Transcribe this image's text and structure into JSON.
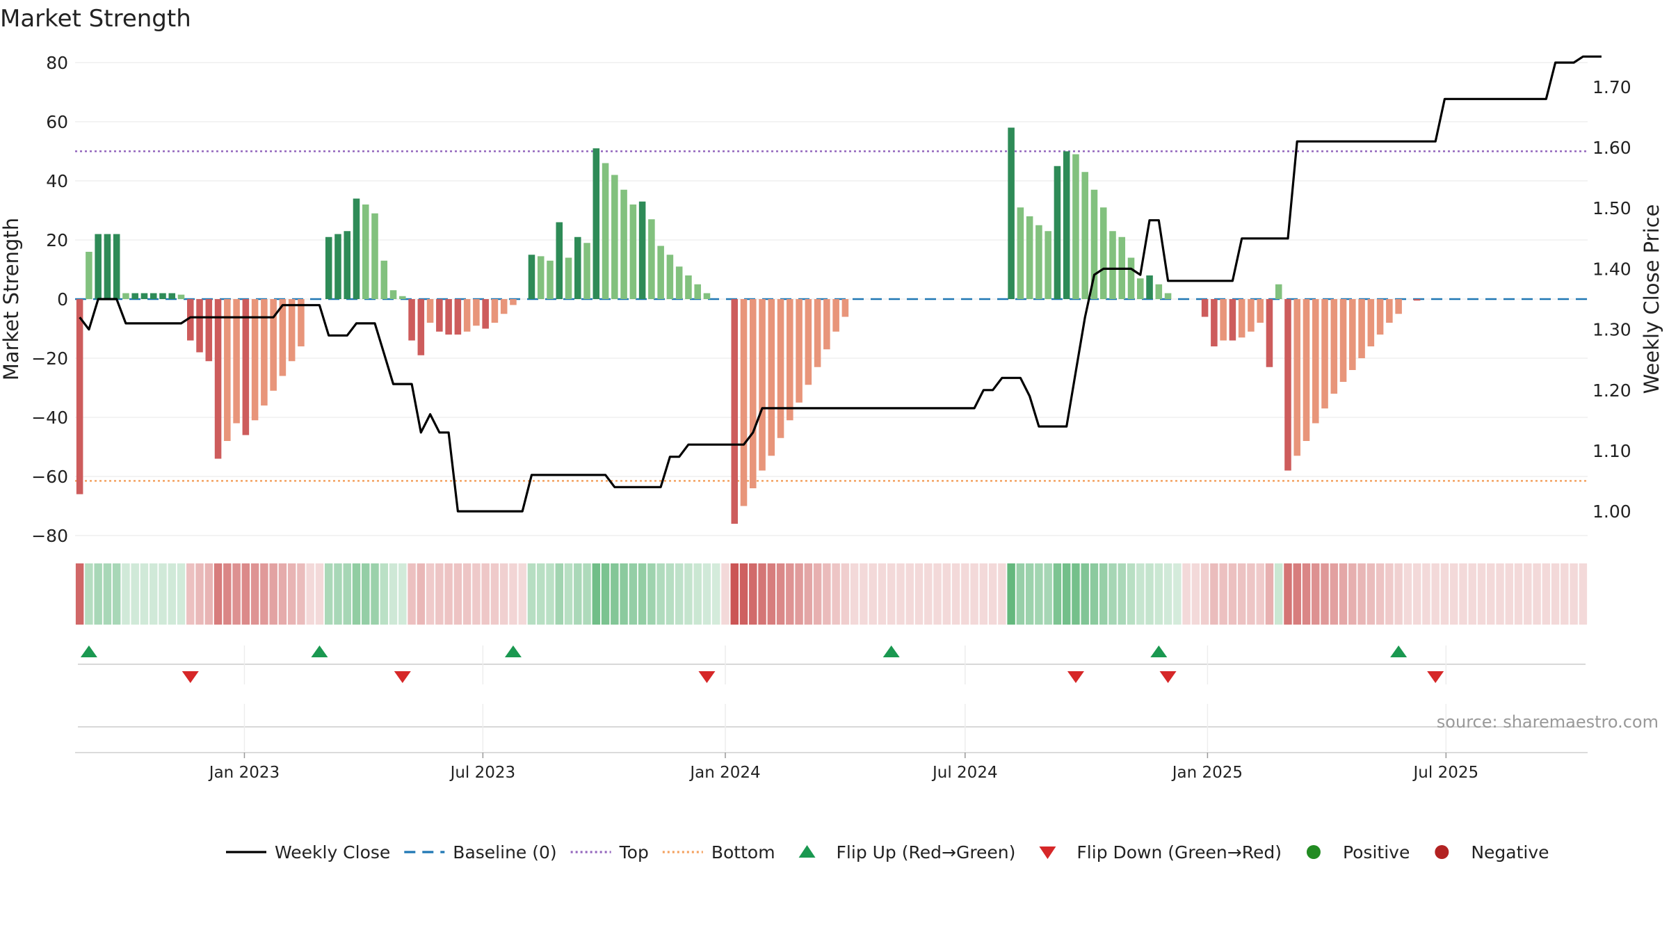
{
  "chart_data": {
    "type": "bar",
    "title": "Market Strength",
    "source": "source: sharemaestro.com",
    "left_axis": {
      "label": "Market Strength",
      "range": [
        -80,
        80
      ],
      "ticks": [
        80,
        60,
        40,
        20,
        0,
        -20,
        -40,
        -60,
        -80
      ],
      "tick_labels": [
        "80",
        "60",
        "40",
        "20",
        "0",
        "−20",
        "−40",
        "−60",
        "−80"
      ]
    },
    "right_axis": {
      "label": "Weekly Close Price",
      "range": [
        0.96,
        1.74
      ],
      "ticks": [
        1.0,
        1.1,
        1.2,
        1.3,
        1.4,
        1.5,
        1.6,
        1.7
      ],
      "tick_labels": [
        "1.00",
        "1.10",
        "1.20",
        "1.30",
        "1.40",
        "1.50",
        "1.60",
        "1.70"
      ]
    },
    "x_axis": {
      "start": "2022-08-29",
      "weeks": 158,
      "tick_labels": [
        "Jan 2023",
        "Jul 2023",
        "Jan 2024",
        "Jul 2024",
        "Jan 2025",
        "Jul 2025"
      ],
      "tick_dates": [
        "2023-01-01",
        "2023-07-01",
        "2024-01-01",
        "2024-07-01",
        "2025-01-01",
        "2025-07-01"
      ]
    },
    "reference_lines": {
      "baseline": 0,
      "top": 50,
      "bottom": -61.5
    },
    "strength": [
      -66,
      16,
      22,
      22,
      22,
      2,
      2,
      2,
      2,
      2,
      2,
      1.5,
      -14,
      -18,
      -21,
      -54,
      -48,
      -42,
      -46,
      -41,
      -36,
      -31,
      -26,
      -21,
      -16,
      0,
      0,
      21,
      22,
      23,
      34,
      32,
      29,
      13,
      3,
      1,
      -14,
      -19,
      -8,
      -11,
      -12,
      -12,
      -11,
      -9,
      -10,
      -8,
      -5,
      -2,
      0,
      15,
      14.5,
      13,
      26,
      14,
      21,
      19,
      51,
      46,
      42,
      37,
      32,
      33,
      27,
      18,
      15,
      11,
      8,
      5,
      2,
      0,
      0,
      -76,
      -70,
      -64,
      -58,
      -53,
      -47,
      -41,
      -35,
      -29,
      -23,
      -17,
      -11,
      -6,
      0,
      0,
      0,
      0,
      0,
      0,
      0,
      0,
      0,
      0,
      0,
      0,
      0,
      0,
      0,
      0,
      0,
      58,
      31,
      28,
      25,
      23,
      45,
      50,
      49,
      43,
      37,
      31,
      23,
      21,
      14,
      7,
      8,
      5,
      2,
      0,
      0,
      0,
      -6,
      -16,
      -14,
      -14,
      -13,
      -11,
      -8,
      -23,
      5,
      -58,
      -53,
      -48,
      -42,
      -37,
      -32,
      -28,
      -24,
      -20,
      -16,
      -12,
      -8,
      -5,
      0,
      -0.5,
      0,
      0,
      0,
      0,
      0,
      0,
      0,
      0,
      0,
      0,
      0,
      0,
      0,
      0,
      0,
      0,
      0,
      0
    ],
    "weekly_close": [
      1.32,
      1.3,
      1.35,
      1.35,
      1.35,
      1.31,
      1.31,
      1.31,
      1.31,
      1.31,
      1.31,
      1.31,
      1.32,
      1.32,
      1.32,
      1.32,
      1.32,
      1.32,
      1.32,
      1.32,
      1.32,
      1.32,
      1.34,
      1.34,
      1.34,
      1.34,
      1.34,
      1.29,
      1.29,
      1.29,
      1.31,
      1.31,
      1.31,
      1.26,
      1.21,
      1.21,
      1.21,
      1.13,
      1.16,
      1.13,
      1.13,
      1.0,
      1.0,
      1.0,
      1.0,
      1.0,
      1.0,
      1.0,
      1.0,
      1.06,
      1.06,
      1.06,
      1.06,
      1.06,
      1.06,
      1.06,
      1.06,
      1.06,
      1.04,
      1.04,
      1.04,
      1.04,
      1.04,
      1.04,
      1.09,
      1.09,
      1.11,
      1.11,
      1.11,
      1.11,
      1.11,
      1.11,
      1.11,
      1.13,
      1.17,
      1.17,
      1.17,
      1.17,
      1.17,
      1.17,
      1.17,
      1.17,
      1.17,
      1.17,
      1.17,
      1.17,
      1.17,
      1.17,
      1.17,
      1.17,
      1.17,
      1.17,
      1.17,
      1.17,
      1.17,
      1.17,
      1.17,
      1.17,
      1.2,
      1.2,
      1.22,
      1.22,
      1.22,
      1.19,
      1.14,
      1.14,
      1.14,
      1.14,
      1.23,
      1.32,
      1.39,
      1.4,
      1.4,
      1.4,
      1.4,
      1.39,
      1.48,
      1.48,
      1.38,
      1.38,
      1.38,
      1.38,
      1.38,
      1.38,
      1.38,
      1.38,
      1.45,
      1.45,
      1.45,
      1.45,
      1.45,
      1.45,
      1.61,
      1.61,
      1.61,
      1.61,
      1.61,
      1.61,
      1.61,
      1.61,
      1.61,
      1.61,
      1.61,
      1.61,
      1.61,
      1.61,
      1.61,
      1.61,
      1.68,
      1.68,
      1.68,
      1.68,
      1.68,
      1.68,
      1.68,
      1.68,
      1.68,
      1.68,
      1.68,
      1.68,
      1.74,
      1.74,
      1.74,
      1.75,
      1.75,
      1.75
    ],
    "flip_up_weeks": [
      1,
      26,
      47,
      88,
      117,
      143
    ],
    "flip_down_weeks": [
      12,
      35,
      68,
      108,
      118,
      147
    ],
    "colors": {
      "strong_positive": "#2e8b57",
      "weak_positive": "#82c17e",
      "strong_negative": "#cd5c5c",
      "weak_negative": "#e8957a",
      "weekly_close": "#000000",
      "baseline": "#1f77b4",
      "top": "#9467bd",
      "bottom": "#f4a261",
      "flip_up": "#1a9850",
      "flip_down": "#d62728",
      "positive": "#228b22",
      "negative": "#b22222"
    },
    "legend": {
      "position": "bottom",
      "entries": [
        {
          "label": "Weekly Close",
          "symbol": "solid-line",
          "color": "#000000"
        },
        {
          "label": "Baseline (0)",
          "symbol": "dashed-line",
          "color": "#1f77b4"
        },
        {
          "label": "Top",
          "symbol": "dotted-line",
          "color": "#9467bd"
        },
        {
          "label": "Bottom",
          "symbol": "dotted-line",
          "color": "#f4a261"
        },
        {
          "label": "Flip Up (Red→Green)",
          "symbol": "triangle-up",
          "color": "#1a9850"
        },
        {
          "label": "Flip Down (Green→Red)",
          "symbol": "triangle-down",
          "color": "#d62728"
        },
        {
          "label": "Positive",
          "symbol": "circle",
          "color": "#228b22"
        },
        {
          "label": "Negative",
          "symbol": "circle",
          "color": "#b22222"
        }
      ]
    }
  }
}
